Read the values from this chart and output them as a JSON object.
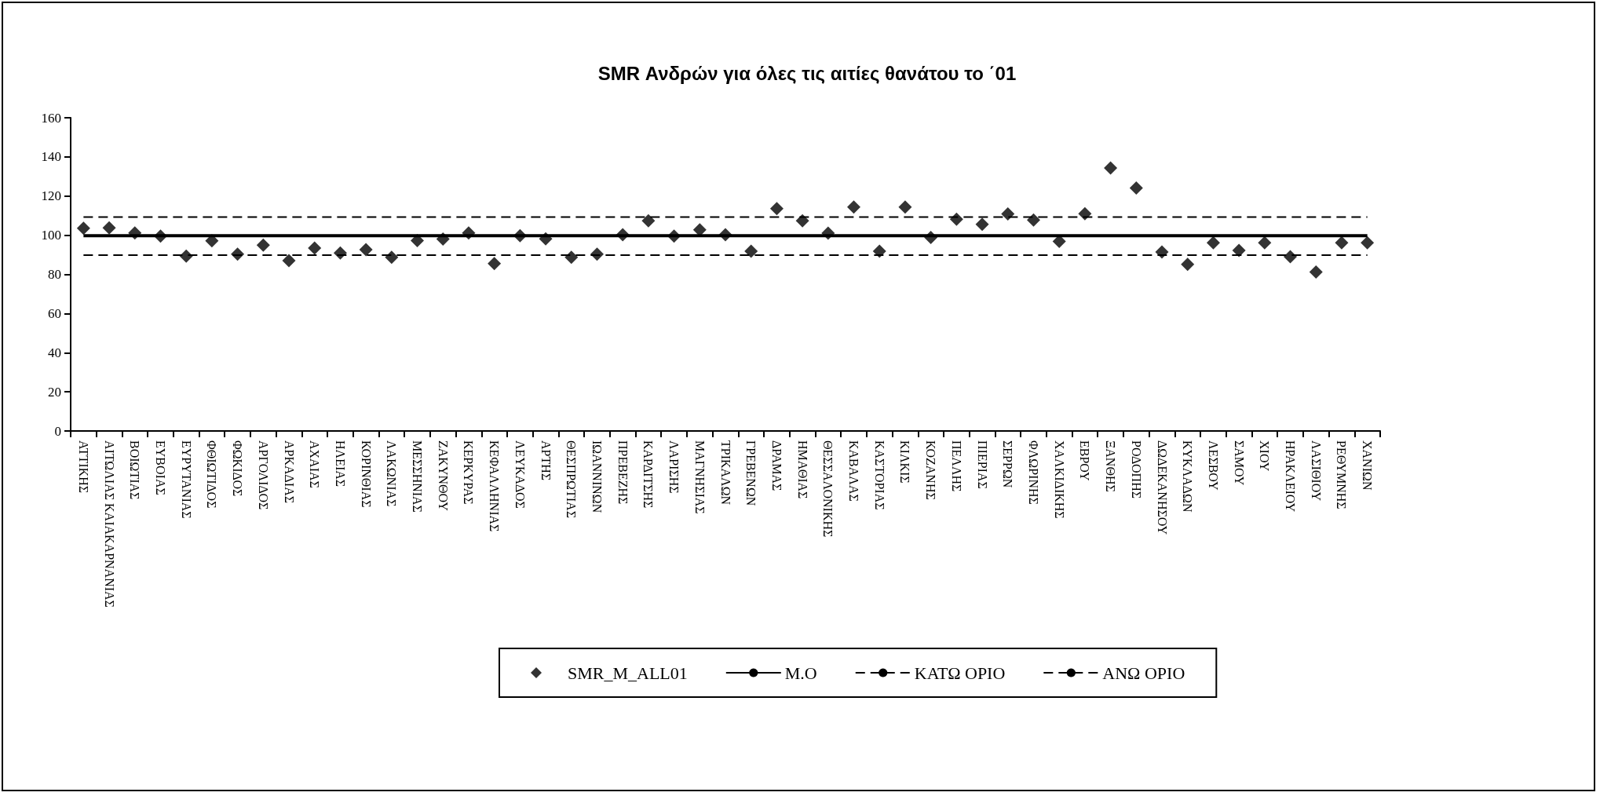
{
  "chart_data": {
    "type": "scatter",
    "title": "SMR Ανδρών για όλες τις αιτίες θανάτου το ΄01",
    "categories": [
      "ΑΤΤΙΚΗΣ",
      "ΑΙΤΩΛΙΑΣ ΚΑΙΑΚΑΡΝΑΝΙΑΣ",
      "ΒΟΙΩΤΙΑΣ",
      "ΕΥΒΟΙΑΣ",
      "ΕΥΡΥΤΑΝΙΑΣ",
      "ΦΘΙΩΤΙΔΟΣ",
      "ΦΩΚΙΔΟΣ",
      "ΑΡΓΟΛΙΔΟΣ",
      "ΑΡΚΑΔΙΑΣ",
      "ΑΧΑΙΑΣ",
      "ΗΛΕΙΑΣ",
      "ΚΟΡΙΝΘΙΑΣ",
      "ΛΑΚΩΝΙΑΣ",
      "ΜΕΣΣΗΝΙΑΣ",
      "ΖΑΚΥΝΘΟΥ",
      "ΚΕΡΚΥΡΑΣ",
      "ΚΕΦΑΛΛΗΝΙΑΣ",
      "ΛΕΥΚΑΔΟΣ",
      "ΑΡΤΗΣ",
      "ΘΕΣΠΡΩΤΙΑΣ",
      "ΙΩΑΝΝΙΝΩΝ",
      "ΠΡΕΒΕΖΗΣ",
      "ΚΑΡΔΙΤΣΗΣ",
      "ΛΑΡΙΣΗΣ",
      "ΜΑΓΝΗΣΙΑΣ",
      "ΤΡΙΚΑΛΩΝ",
      "ΓΡΕΒΕΝΩΝ",
      "ΔΡΑΜΑΣ",
      "ΗΜΑΘΙΑΣ",
      "ΘΕΣΣΑΛΟΝΙΚΗΣ",
      "ΚΑΒΑΛΑΣ",
      "ΚΑΣΤΟΡΙΑΣ",
      "ΚΙΛΚΙΣ",
      "ΚΟΖΑΝΗΣ",
      "ΠΕΛΛΗΣ",
      "ΠΙΕΡΙΑΣ",
      "ΣΕΡΡΩΝ",
      "ΦΛΩΡΙΝΗΣ",
      "ΧΑΛΚΙΔΙΚΗΣ",
      "ΕΒΡΟΥ",
      "ΞΑΝΘΗΣ",
      "ΡΟΔΟΠΗΣ",
      "ΔΩΔΕΚΑΝΗΣΟΥ",
      "ΚΥΚΛΑΔΩΝ",
      "ΛΕΣΒΟΥ",
      "ΣΑΜΟΥ",
      "ΧΙΟΥ",
      "ΗΡΑΚΛΕΙΟΥ",
      "ΛΑΣΙΘΙΟΥ",
      "ΡΕΘΥΜΝΗΣ",
      "ΧΑΝΙΩΝ"
    ],
    "series": [
      {
        "name": "SMR_M_ALL01",
        "marker": "diamond",
        "color": "#000000",
        "values": [
          103.6,
          103.8,
          101.2,
          99.5,
          89.3,
          97.1,
          90.3,
          94.9,
          87.0,
          93.4,
          90.9,
          92.6,
          88.7,
          97.2,
          98.0,
          101.2,
          85.5,
          99.7,
          98.1,
          88.7,
          90.3,
          100.3,
          107.4,
          99.5,
          102.8,
          100.3,
          91.8,
          113.6,
          107.4,
          101.1,
          114.4,
          91.8,
          114.4,
          98.8,
          108.2,
          105.6,
          110.9,
          107.8,
          96.8,
          111.0,
          134.3,
          124.1,
          91.4,
          85.1,
          96.1,
          92.2,
          96.1,
          89.0,
          81.2,
          96.1,
          96.1
        ]
      },
      {
        "name": "Μ.Ο",
        "type": "line",
        "marker": "none",
        "line_style": "solid",
        "color": "#000000",
        "values": [
          99.7,
          99.7,
          99.7,
          99.7,
          99.7,
          99.7,
          99.7,
          99.7,
          99.7,
          99.7,
          99.7,
          99.7,
          99.7,
          99.7,
          99.7,
          99.7,
          99.7,
          99.7,
          99.7,
          99.7,
          99.7,
          99.7,
          99.7,
          99.7,
          99.7,
          99.7,
          99.7,
          99.7,
          99.7,
          99.7,
          99.7,
          99.7,
          99.7,
          99.7,
          99.7,
          99.7,
          99.7,
          99.7,
          99.7,
          99.7,
          99.7,
          99.7,
          99.7,
          99.7,
          99.7,
          99.7,
          99.7,
          99.7,
          99.7,
          99.7,
          99.7
        ]
      },
      {
        "name": "ΚΑΤΩ ΟΡΙΟ",
        "type": "line",
        "marker": "none",
        "line_style": "dashed",
        "color": "#000000",
        "values": [
          89.8,
          89.8,
          89.8,
          89.8,
          89.8,
          89.8,
          89.8,
          89.8,
          89.8,
          89.8,
          89.8,
          89.8,
          89.8,
          89.8,
          89.8,
          89.8,
          89.8,
          89.8,
          89.8,
          89.8,
          89.8,
          89.8,
          89.8,
          89.8,
          89.8,
          89.8,
          89.8,
          89.8,
          89.8,
          89.8,
          89.8,
          89.8,
          89.8,
          89.8,
          89.8,
          89.8,
          89.8,
          89.8,
          89.8,
          89.8,
          89.8,
          89.8,
          89.8,
          89.8,
          89.8,
          89.8,
          89.8,
          89.8,
          89.8,
          89.8,
          89.8
        ]
      },
      {
        "name": "ΑΝΩ ΟΡΙΟ",
        "type": "line",
        "marker": "none",
        "line_style": "dashed",
        "color": "#000000",
        "values": [
          109.3,
          109.3,
          109.3,
          109.3,
          109.3,
          109.3,
          109.3,
          109.3,
          109.3,
          109.3,
          109.3,
          109.3,
          109.3,
          109.3,
          109.3,
          109.3,
          109.3,
          109.3,
          109.3,
          109.3,
          109.3,
          109.3,
          109.3,
          109.3,
          109.3,
          109.3,
          109.3,
          109.3,
          109.3,
          109.3,
          109.3,
          109.3,
          109.3,
          109.3,
          109.3,
          109.3,
          109.3,
          109.3,
          109.3,
          109.3,
          109.3,
          109.3,
          109.3,
          109.3,
          109.3,
          109.3,
          109.3,
          109.3,
          109.3,
          109.3,
          109.3
        ]
      }
    ],
    "ylim": [
      0,
      160
    ],
    "yticks": [
      0,
      20,
      40,
      60,
      80,
      100,
      120,
      140,
      160
    ],
    "grid": false,
    "legend": "bottom"
  }
}
